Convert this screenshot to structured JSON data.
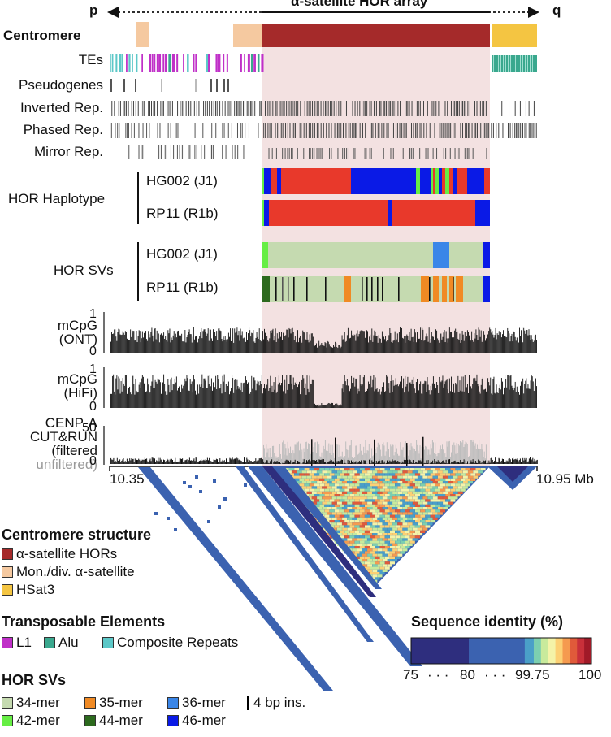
{
  "arrow": {
    "left": "p",
    "right": "q",
    "title": "α-satellite HOR array"
  },
  "tracks": {
    "centromere": "Centromere",
    "tes": "TEs",
    "pseudogenes": "Pseudogenes",
    "inverted": "Inverted Rep.",
    "phased": "Phased Rep.",
    "mirror": "Mirror Rep.",
    "hor_haplotype": "HOR Haplotype",
    "hor_svs": "HOR SVs",
    "hg002": "HG002 (J1)",
    "rp11": "RP11 (R1b)",
    "mcpg": "mCpG",
    "ont": "(ONT)",
    "hifi": "(HiFi)",
    "cenpa1": "CENP-A",
    "cenpa2": "CUT&RUN",
    "filtered": "(filtered",
    "unfiltered": "unfiltered)"
  },
  "axis": {
    "start": "10.35",
    "end": "10.95 Mb",
    "ont_max": "1",
    "ont_min": "0",
    "hifi_max": "1",
    "hifi_min": "0",
    "cr_max": "50",
    "cr_min": "0"
  },
  "legend": {
    "cen_title": "Centromere structure",
    "cen_items": [
      {
        "label": "α-satellite HORs",
        "color": "#a52a2a"
      },
      {
        "label": "Mon./div. α-satellite",
        "color": "#f5c9a0"
      },
      {
        "label": "HSat3",
        "color": "#f4c542"
      }
    ],
    "te_title": "Transposable Elements",
    "te_items": [
      {
        "label": "L1",
        "color": "#c030c8"
      },
      {
        "label": "Alu",
        "color": "#3aa88e"
      },
      {
        "label": "Composite Repeats",
        "color": "#5cc8c8"
      }
    ],
    "sv_title": "HOR SVs",
    "sv_items": [
      {
        "label": "34-mer",
        "color": "#c5dab0"
      },
      {
        "label": "35-mer",
        "color": "#f08a24"
      },
      {
        "label": "36-mer",
        "color": "#3a86e8"
      },
      {
        "label": "4 bp ins.",
        "color": "#000000"
      },
      {
        "label": "42-mer",
        "color": "#66ee44"
      },
      {
        "label": "44-mer",
        "color": "#2d6a1e"
      },
      {
        "label": "46-mer",
        "color": "#0a1ae6"
      }
    ],
    "identity_title": "Sequence identity (%)",
    "identity_ticks": [
      "75",
      "80",
      "99.75",
      "100"
    ],
    "identity_dots": "· · ·"
  },
  "colors": {
    "hor": "#a52a2a",
    "mon": "#f5c9a0",
    "hsat3": "#f4c542",
    "highlight": "#f3e1e1",
    "l1": "#c030c8",
    "alu": "#3aa88e",
    "comp": "#5cc8c8",
    "red": "#e8392b",
    "blue": "#0a1ae6",
    "sv34": "#c5dab0",
    "sv35": "#f08a24",
    "sv36": "#3a86e8",
    "sv42": "#66ee44",
    "sv44": "#2d6a1e"
  }
}
